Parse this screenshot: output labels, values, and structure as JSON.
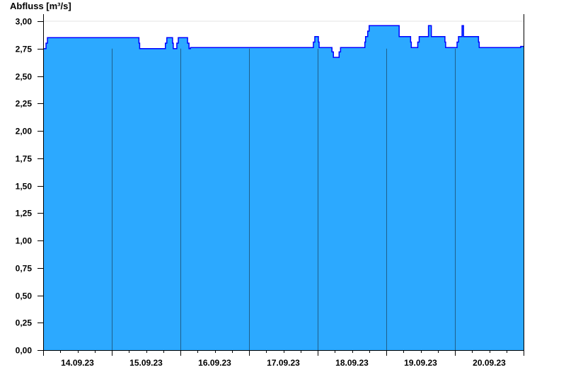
{
  "chart_data": {
    "type": "area",
    "ylabel": "Abfluss [m³/s]",
    "ylim": [
      0,
      3
    ],
    "yticks": [
      "0,00",
      "0,25",
      "0,50",
      "0,75",
      "1,00",
      "1,25",
      "1,50",
      "1,75",
      "2,00",
      "2,25",
      "2,50",
      "2,75",
      "3,00"
    ],
    "xlim": [
      "2023-09-14 00:00",
      "2023-09-21 00:00"
    ],
    "xticks": [
      "14.09.23",
      "15.09.23",
      "16.09.23",
      "17.09.23",
      "18.09.23",
      "19.09.23",
      "20.09.23"
    ],
    "grid": "horizontal at 3,00 only; vertical day separators",
    "step": true,
    "colors": {
      "fill": "#2ca9ff",
      "line": "#0000ff",
      "day_lines": "#1f5f8b"
    },
    "points": [
      [
        "2023-09-14 00:00",
        2.75
      ],
      [
        "2023-09-14 01:00",
        2.8
      ],
      [
        "2023-09-14 01:30",
        2.85
      ],
      [
        "2023-09-15 09:30",
        2.8
      ],
      [
        "2023-09-15 09:45",
        2.75
      ],
      [
        "2023-09-15 18:45",
        2.8
      ],
      [
        "2023-09-15 19:15",
        2.85
      ],
      [
        "2023-09-15 21:15",
        2.8
      ],
      [
        "2023-09-15 21:30",
        2.75
      ],
      [
        "2023-09-15 22:45",
        2.8
      ],
      [
        "2023-09-15 23:15",
        2.85
      ],
      [
        "2023-09-16 02:30",
        2.8
      ],
      [
        "2023-09-16 03:00",
        2.75
      ],
      [
        "2023-09-16 03:30",
        2.76
      ],
      [
        "2023-09-17 22:30",
        2.81
      ],
      [
        "2023-09-17 23:00",
        2.86
      ],
      [
        "2023-09-18 00:15",
        2.81
      ],
      [
        "2023-09-18 00:30",
        2.76
      ],
      [
        "2023-09-18 05:00",
        2.72
      ],
      [
        "2023-09-18 05:30",
        2.67
      ],
      [
        "2023-09-18 07:30",
        2.72
      ],
      [
        "2023-09-18 08:00",
        2.76
      ],
      [
        "2023-09-18 16:30",
        2.81
      ],
      [
        "2023-09-18 16:45",
        2.86
      ],
      [
        "2023-09-18 17:30",
        2.91
      ],
      [
        "2023-09-18 18:00",
        2.96
      ],
      [
        "2023-09-19 04:30",
        2.86
      ],
      [
        "2023-09-19 08:30",
        2.81
      ],
      [
        "2023-09-19 08:45",
        2.76
      ],
      [
        "2023-09-19 11:00",
        2.81
      ],
      [
        "2023-09-19 11:30",
        2.86
      ],
      [
        "2023-09-19 14:45",
        2.96
      ],
      [
        "2023-09-19 15:45",
        2.86
      ],
      [
        "2023-09-19 20:30",
        2.81
      ],
      [
        "2023-09-19 20:45",
        2.76
      ],
      [
        "2023-09-20 00:45",
        2.81
      ],
      [
        "2023-09-20 01:15",
        2.86
      ],
      [
        "2023-09-20 02:30",
        2.96
      ],
      [
        "2023-09-20 03:00",
        2.86
      ],
      [
        "2023-09-20 08:15",
        2.81
      ],
      [
        "2023-09-20 08:30",
        2.76
      ],
      [
        "2023-09-20 23:00",
        2.77
      ],
      [
        "2023-09-21 00:00",
        2.77
      ]
    ]
  }
}
